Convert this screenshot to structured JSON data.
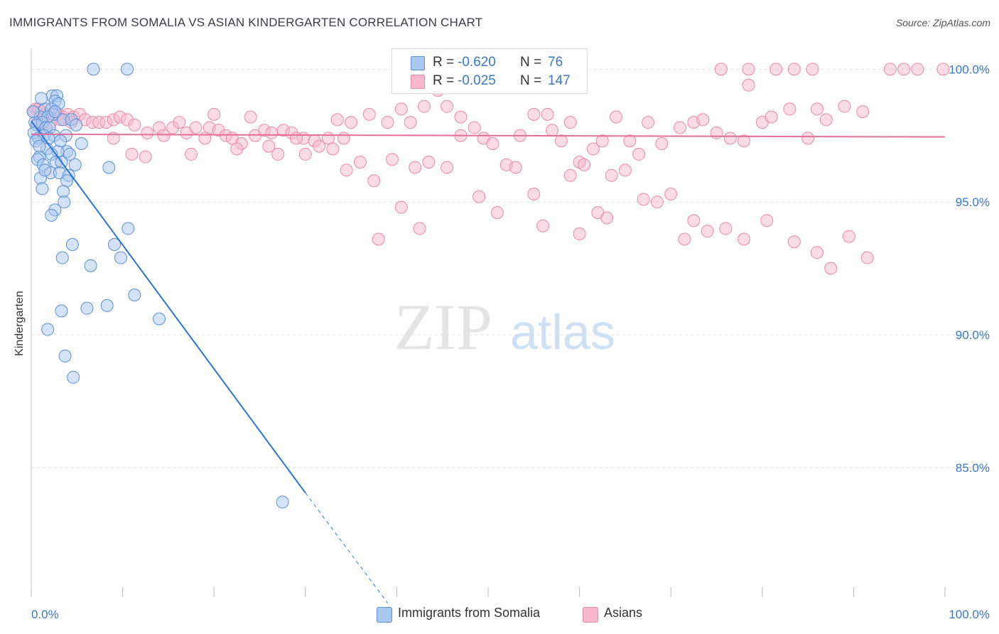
{
  "header": {
    "title": "IMMIGRANTS FROM SOMALIA VS ASIAN KINDERGARTEN CORRELATION CHART",
    "source": "Source: ZipAtlas.com"
  },
  "legend": {
    "rows": [
      {
        "r_label": "R =",
        "r_value": "-0.620",
        "n_label": "N =",
        "n_value": "76"
      },
      {
        "r_label": "R =",
        "r_value": "-0.025",
        "n_label": "N =",
        "n_value": "147"
      }
    ]
  },
  "bottom_legend": {
    "items": [
      "Immigrants from Somalia",
      "Asians"
    ]
  },
  "watermark": {
    "zip": "ZIP",
    "atlas": "atlas"
  },
  "colors": {
    "somalia_fill": "#aac8f0",
    "somalia_stroke": "#5b8fd6",
    "somalia_line": "#2f74d0",
    "asian_fill": "#f7b8cc",
    "asian_stroke": "#e98aa8",
    "asian_line": "#e4709a",
    "tick_label": "#3b78c9",
    "grid": "#dddddd"
  },
  "chart_data": {
    "type": "scatter",
    "title": "IMMIGRANTS FROM SOMALIA VS ASIAN KINDERGARTEN CORRELATION CHART",
    "xlabel": "",
    "ylabel": "Kindergarten",
    "x_tick_labels": [
      "0.0%",
      "100.0%"
    ],
    "y_tick_labels": [
      "85.0%",
      "90.0%",
      "95.0%",
      "100.0%"
    ],
    "y_ticks": [
      85,
      90,
      95,
      100
    ],
    "xlim": [
      0,
      100
    ],
    "ylim": [
      80.5,
      101.0
    ],
    "grid": true,
    "series": [
      {
        "name": "Immigrants from Somalia",
        "color": "#aac8f0",
        "trend": {
          "x": [
            0,
            30
          ],
          "y": [
            98.05,
            84.05
          ],
          "dashed_to": [
            39,
            79.9
          ]
        },
        "points": [
          [
            6.8,
            100
          ],
          [
            10.5,
            100
          ],
          [
            2.3,
            99
          ],
          [
            2.8,
            99
          ],
          [
            2.6,
            98.8
          ],
          [
            3.0,
            98.7
          ],
          [
            1.5,
            98.5
          ],
          [
            2.2,
            98.5
          ],
          [
            2.4,
            98.3
          ],
          [
            1.0,
            98.2
          ],
          [
            1.8,
            98.2
          ],
          [
            3.5,
            98.1
          ],
          [
            4.4,
            98.1
          ],
          [
            0.4,
            98.0
          ],
          [
            1.2,
            98.0
          ],
          [
            0.6,
            97.9
          ],
          [
            1.6,
            97.8
          ],
          [
            2.0,
            97.8
          ],
          [
            0.3,
            97.6
          ],
          [
            1.4,
            97.5
          ],
          [
            2.5,
            97.5
          ],
          [
            3.8,
            97.5
          ],
          [
            0.8,
            97.4
          ],
          [
            1.9,
            97.4
          ],
          [
            0.5,
            97.3
          ],
          [
            3.2,
            97.3
          ],
          [
            5.5,
            97.2
          ],
          [
            1.7,
            97.0
          ],
          [
            3.9,
            96.9
          ],
          [
            2.9,
            96.9
          ],
          [
            2.2,
            96.8
          ],
          [
            4.2,
            96.8
          ],
          [
            0.9,
            96.7
          ],
          [
            0.7,
            96.6
          ],
          [
            2.7,
            96.5
          ],
          [
            3.3,
            96.5
          ],
          [
            1.3,
            96.4
          ],
          [
            4.8,
            96.4
          ],
          [
            8.5,
            96.3
          ],
          [
            2.1,
            96.1
          ],
          [
            3.1,
            96.1
          ],
          [
            4.1,
            96.0
          ],
          [
            1.0,
            95.9
          ],
          [
            3.9,
            95.8
          ],
          [
            1.2,
            95.5
          ],
          [
            3.5,
            95.4
          ],
          [
            3.6,
            95.0
          ],
          [
            2.6,
            94.7
          ],
          [
            2.2,
            94.5
          ],
          [
            10.6,
            94.0
          ],
          [
            4.5,
            93.4
          ],
          [
            9.1,
            93.4
          ],
          [
            3.4,
            92.9
          ],
          [
            9.8,
            92.9
          ],
          [
            6.5,
            92.6
          ],
          [
            11.3,
            91.5
          ],
          [
            8.3,
            91.1
          ],
          [
            6.1,
            91.0
          ],
          [
            3.3,
            90.9
          ],
          [
            14.0,
            90.6
          ],
          [
            1.8,
            90.2
          ],
          [
            3.7,
            89.2
          ],
          [
            4.6,
            88.4
          ],
          [
            27.5,
            83.7
          ],
          [
            1.1,
            98.9
          ],
          [
            0.2,
            98.4
          ],
          [
            0.9,
            97.1
          ],
          [
            2.6,
            98.4
          ],
          [
            1.5,
            96.2
          ],
          [
            4.9,
            97.9
          ]
        ]
      },
      {
        "name": "Asians",
        "color": "#f7b8cc",
        "trend": {
          "x": [
            0,
            100
          ],
          "y": [
            97.55,
            97.45
          ]
        },
        "points": [
          [
            0.3,
            98.4
          ],
          [
            0.5,
            98.5
          ],
          [
            0.8,
            98.5
          ],
          [
            1.1,
            98.4
          ],
          [
            1.5,
            98.3
          ],
          [
            2.0,
            98.3
          ],
          [
            2.5,
            98.3
          ],
          [
            3.0,
            98.3
          ],
          [
            3.5,
            98.2
          ],
          [
            4.0,
            98.3
          ],
          [
            4.6,
            98.2
          ],
          [
            5.3,
            98.3
          ],
          [
            0.7,
            98.0
          ],
          [
            1.3,
            97.9
          ],
          [
            2.1,
            98.0
          ],
          [
            3.2,
            98.1
          ],
          [
            4.4,
            98.0
          ],
          [
            5.9,
            98.1
          ],
          [
            6.7,
            98.0
          ],
          [
            7.4,
            98.0
          ],
          [
            8.2,
            98.0
          ],
          [
            9.0,
            98.1
          ],
          [
            9.7,
            98.2
          ],
          [
            10.5,
            98.1
          ],
          [
            11.3,
            97.9
          ],
          [
            12.7,
            97.6
          ],
          [
            14.0,
            97.8
          ],
          [
            15.5,
            97.8
          ],
          [
            16.2,
            98.0
          ],
          [
            17.0,
            97.6
          ],
          [
            18.0,
            97.8
          ],
          [
            19.5,
            97.8
          ],
          [
            20.5,
            97.7
          ],
          [
            21.3,
            97.5
          ],
          [
            22.0,
            97.4
          ],
          [
            23.0,
            97.2
          ],
          [
            24.5,
            97.5
          ],
          [
            25.5,
            97.7
          ],
          [
            26.3,
            97.6
          ],
          [
            27.6,
            97.7
          ],
          [
            28.5,
            97.6
          ],
          [
            29.8,
            97.4
          ],
          [
            31.0,
            97.3
          ],
          [
            32.5,
            97.4
          ],
          [
            33.5,
            98.1
          ],
          [
            34.2,
            97.4
          ],
          [
            35.0,
            98.0
          ],
          [
            37.0,
            98.3
          ],
          [
            39.0,
            98.0
          ],
          [
            40.5,
            98.5
          ],
          [
            41.5,
            98.0
          ],
          [
            43.0,
            98.6
          ],
          [
            44.5,
            99.2
          ],
          [
            45.5,
            98.6
          ],
          [
            47.0,
            98.2
          ],
          [
            48.5,
            97.8
          ],
          [
            49.5,
            97.4
          ],
          [
            50.5,
            97.2
          ],
          [
            52.0,
            96.4
          ],
          [
            53.5,
            97.5
          ],
          [
            55.0,
            98.3
          ],
          [
            56.5,
            98.3
          ],
          [
            58.0,
            97.3
          ],
          [
            59.0,
            98.0
          ],
          [
            60.0,
            96.5
          ],
          [
            61.5,
            97.0
          ],
          [
            62.5,
            97.3
          ],
          [
            64.0,
            98.2
          ],
          [
            65.5,
            97.3
          ],
          [
            66.5,
            96.8
          ],
          [
            67.5,
            98.0
          ],
          [
            69.0,
            97.2
          ],
          [
            71.0,
            97.8
          ],
          [
            72.5,
            98.0
          ],
          [
            73.5,
            98.1
          ],
          [
            75.0,
            97.6
          ],
          [
            76.5,
            97.4
          ],
          [
            78.0,
            97.3
          ],
          [
            78.5,
            99.4
          ],
          [
            80.0,
            98.0
          ],
          [
            81.0,
            98.2
          ],
          [
            83.0,
            98.5
          ],
          [
            85.0,
            97.4
          ],
          [
            86.0,
            98.5
          ],
          [
            87.0,
            98.1
          ],
          [
            89.0,
            98.6
          ],
          [
            91.0,
            98.4
          ],
          [
            94.0,
            100
          ],
          [
            95.5,
            100
          ],
          [
            97.0,
            100
          ],
          [
            99.8,
            100
          ],
          [
            75.5,
            100
          ],
          [
            81.5,
            100
          ],
          [
            83.5,
            100
          ],
          [
            85.5,
            100
          ],
          [
            78.5,
            100
          ],
          [
            9.0,
            97.4
          ],
          [
            11.0,
            96.8
          ],
          [
            12.5,
            96.7
          ],
          [
            14.5,
            97.5
          ],
          [
            17.5,
            96.8
          ],
          [
            19.0,
            97.4
          ],
          [
            20.0,
            98.3
          ],
          [
            22.5,
            97.0
          ],
          [
            24.0,
            98.2
          ],
          [
            26.0,
            97.1
          ],
          [
            27.0,
            96.8
          ],
          [
            29.0,
            97.4
          ],
          [
            30.0,
            96.8
          ],
          [
            31.5,
            97.1
          ],
          [
            33.0,
            97.0
          ],
          [
            34.5,
            96.2
          ],
          [
            36.0,
            96.5
          ],
          [
            37.5,
            95.8
          ],
          [
            39.5,
            96.6
          ],
          [
            40.5,
            94.8
          ],
          [
            42.0,
            96.3
          ],
          [
            43.5,
            96.5
          ],
          [
            45.5,
            96.3
          ],
          [
            47.0,
            97.5
          ],
          [
            49.0,
            95.2
          ],
          [
            51.0,
            94.6
          ],
          [
            53.0,
            96.3
          ],
          [
            55.0,
            95.3
          ],
          [
            57.0,
            97.7
          ],
          [
            59.0,
            96.0
          ],
          [
            60.5,
            96.4
          ],
          [
            62.0,
            94.6
          ],
          [
            63.5,
            96.0
          ],
          [
            65.0,
            96.2
          ],
          [
            67.0,
            95.1
          ],
          [
            68.5,
            95.0
          ],
          [
            70.0,
            95.3
          ],
          [
            71.5,
            93.6
          ],
          [
            72.5,
            94.3
          ],
          [
            74.0,
            93.9
          ],
          [
            76.0,
            94.0
          ],
          [
            78.0,
            93.6
          ],
          [
            80.5,
            94.3
          ],
          [
            83.5,
            93.5
          ],
          [
            86.0,
            93.1
          ],
          [
            87.5,
            92.5
          ],
          [
            89.5,
            93.7
          ],
          [
            91.5,
            92.9
          ],
          [
            38.0,
            93.6
          ],
          [
            42.5,
            94.0
          ],
          [
            56.0,
            94.1
          ],
          [
            60.0,
            93.8
          ],
          [
            63.0,
            94.4
          ]
        ]
      }
    ]
  }
}
